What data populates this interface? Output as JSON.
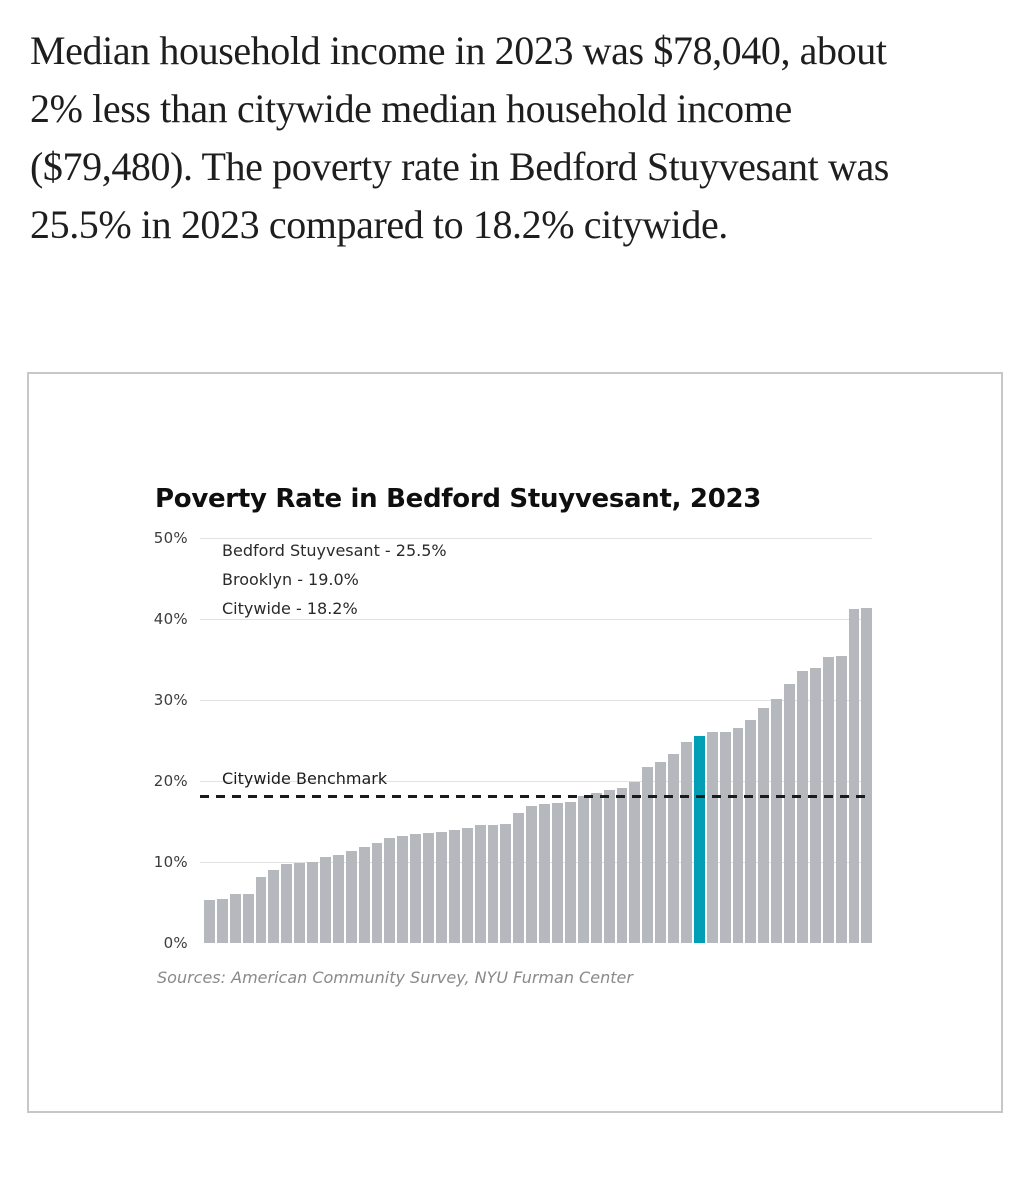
{
  "intro": {
    "text": "Median household income in 2023 was $78,040, about 2% less than citywide median household income ($79,480). The poverty rate in Bedford Stuyvesant was 25.5% in 2023 compared to 18.2% citywide."
  },
  "chart": {
    "title": "Poverty Rate in Bedford Stuyvesant, 2023",
    "legend": [
      "Bedford Stuyvesant - 25.5%",
      "Brooklyn - 19.0%",
      "Citywide - 18.2%"
    ],
    "benchmark_label": "Citywide Benchmark",
    "y_ticks": [
      "50%",
      "40%",
      "30%",
      "20%",
      "10%",
      "0%"
    ],
    "sources": "Sources: American Community Survey, NYU Furman Center",
    "colors": {
      "bar": "#b5b8bc",
      "highlight": "#009fb6",
      "benchmark_line": "#1b1b1b",
      "gridline": "#e1e1e1"
    }
  },
  "chart_data": {
    "type": "bar",
    "title": "Poverty Rate in Bedford Stuyvesant, 2023",
    "x_axis_note": "NYC neighborhoods sorted ascending by poverty rate (no x-axis labels shown)",
    "values": [
      5.3,
      5.4,
      6.0,
      6.1,
      8.1,
      9.0,
      9.8,
      9.9,
      10.0,
      10.6,
      10.9,
      11.3,
      11.8,
      12.4,
      13.0,
      13.2,
      13.5,
      13.6,
      13.7,
      14.0,
      14.2,
      14.6,
      14.6,
      14.7,
      16.1,
      16.9,
      17.1,
      17.3,
      17.4,
      18.1,
      18.5,
      18.9,
      19.1,
      19.9,
      21.7,
      22.4,
      23.3,
      24.8,
      25.5,
      26.0,
      26.1,
      26.5,
      27.5,
      29.0,
      30.1,
      32.0,
      33.6,
      33.9,
      35.3,
      35.4,
      41.2,
      41.3
    ],
    "highlight_index": 38,
    "highlight_name": "Bedford Stuyvesant",
    "highlight_value": 25.5,
    "benchmark": {
      "label": "Citywide Benchmark",
      "value": 18.2
    },
    "reference_values": [
      {
        "name": "Bedford Stuyvesant",
        "value": 25.5
      },
      {
        "name": "Brooklyn",
        "value": 19.0
      },
      {
        "name": "Citywide",
        "value": 18.2
      }
    ],
    "ylim": [
      0,
      50
    ],
    "y_tick_labels": [
      "0%",
      "10%",
      "20%",
      "30%",
      "40%",
      "50%"
    ],
    "grid": true,
    "legend_position": "top-left inside plot"
  }
}
